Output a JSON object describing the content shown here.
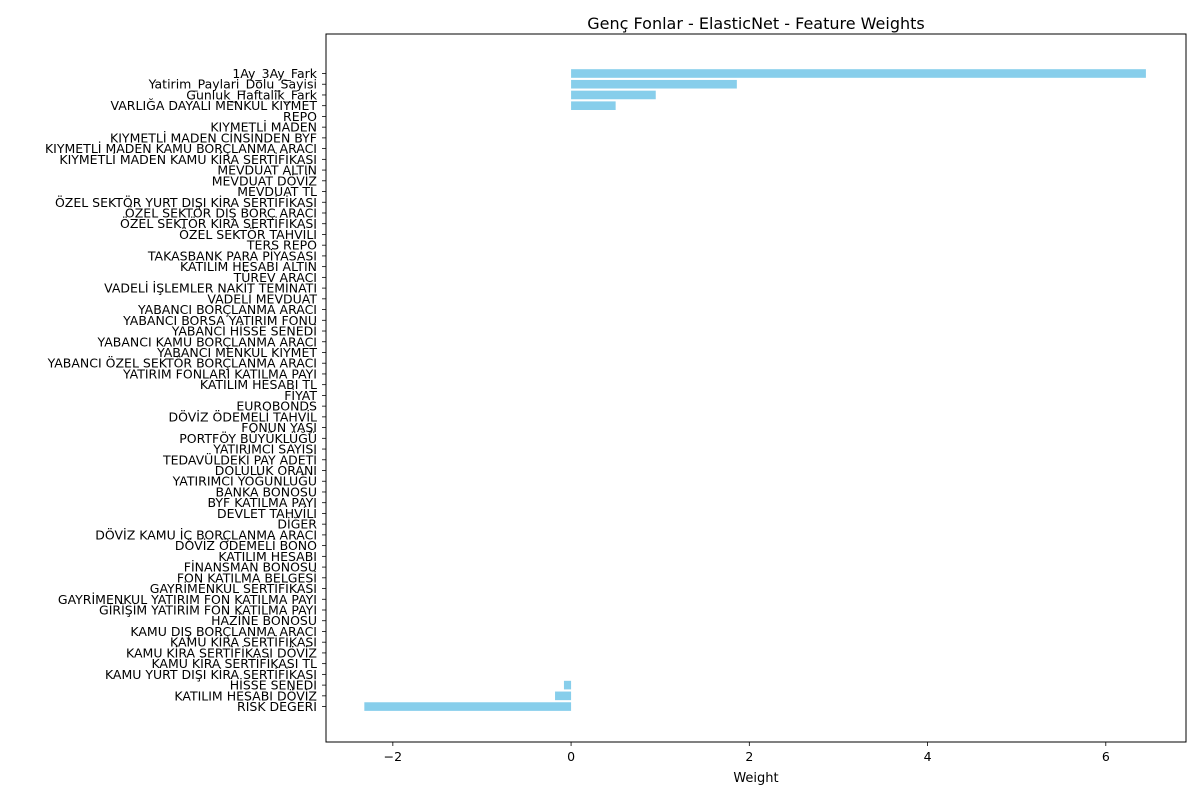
{
  "chart_data": {
    "type": "bar",
    "orientation": "horizontal",
    "title": "Genç Fonlar - ElasticNet - Feature Weights",
    "xlabel": "Weight",
    "ylabel": "",
    "xlim": [
      -2.75,
      6.9
    ],
    "x_ticks": [
      -2,
      0,
      2,
      4,
      6
    ],
    "x_tick_labels": [
      "−2",
      "0",
      "2",
      "4",
      "6"
    ],
    "grid": false,
    "bar_color": "#87CEEB",
    "categories": [
      "1Ay_3Ay_Fark",
      "Yatirim_Paylari_Dolu_Sayisi",
      "Gunluk_Haftalik_Fark",
      "VARLIĞA DAYALI MENKUL KIYMET",
      "REPO",
      "KIYMETLİ MADEN",
      "KIYMETLİ MADEN CİNSİNDEN BYF",
      "KIYMETLİ MADEN KAMU BORÇLANMA ARACI",
      "KIYMETLİ MADEN KAMU KİRA SERTİFİKASI",
      "MEVDUAT ALTIN",
      "MEVDUAT DÖVİZ",
      "MEVDUAT TL",
      "ÖZEL SEKTÖR YURT DIŞI KİRA SERTİFİKASI",
      "ÖZEL SEKTÖR DIŞ BORÇ ARACI",
      "ÖZEL SEKTÖR KİRA SERTİFİKASI",
      "ÖZEL SEKTÖR TAHVİLİ",
      "TERS REPO",
      "TAKASBANK PARA PİYASASI",
      "KATILIM HESABI ALTIN",
      "TÜREV ARACI",
      "VADELİ İŞLEMLER NAKİT TEMİNATI",
      "VADELİ MEVDUAT",
      "YABANCI BORÇLANMA ARACI",
      "YABANCI BORSA YATIRIM FONU",
      "YABANCI HİSSE SENEDİ",
      "YABANCI KAMU BORÇLANMA ARACI",
      "YABANCI MENKUL KIYMET",
      "YABANCI ÖZEL SEKTÖR BORÇLANMA ARACI",
      "YATIRIM FONLARI KATILMA PAYI",
      "KATILIM HESABI TL",
      "FİYAT",
      "EUROBONDS",
      "DÖVİZ ÖDEMELİ TAHVİL",
      "FONUN YAŞI",
      "PORTFÖY BÜYÜKLÜĞÜ",
      "YATIRIMCI SAYISI",
      "TEDAVÜLDEKİ PAY ADETİ",
      "DOLULUK ORANI",
      "YATIRIMCI YOĞUNLUĞU",
      "BANKA BONOSU",
      "BYF KATILMA PAYI",
      "DEVLET TAHVİLİ",
      "DİĞER",
      "DÖVİZ KAMU İÇ BORÇLANMA ARACI",
      "DÖVİZ ÖDEMELİ BONO",
      "KATILIM HESABI",
      "FİNANSMAN BONOSU",
      "FON KATILMA BELGESİ",
      "GAYRİMENKUL SERTİFİKASI",
      "GAYRİMENKUL YATIRIM FON KATILMA PAYI",
      "GİRİŞİM YATIRIM FON KATILMA PAYI",
      "HAZİNE BONOSU",
      "KAMU DIŞ BORÇLANMA ARACI",
      "KAMU KİRA SERTİFİKASI",
      "KAMU KİRA SERTİFİKASI DÖVİZ",
      "KAMU KİRA SERTİFİKASI TL",
      "KAMU YURT DIŞI KİRA SERTİFİKASI",
      "HİSSE SENEDİ",
      "KATILIM HESABI DÖVİZ",
      "RİSK DEĞERİ"
    ],
    "values": [
      6.45,
      1.86,
      0.95,
      0.5,
      0,
      0,
      0,
      0,
      0,
      0,
      0,
      0,
      0,
      0,
      0,
      0,
      0,
      0,
      0,
      0,
      0,
      0,
      0,
      0,
      0,
      0,
      0,
      0,
      0,
      0,
      0,
      0,
      0,
      0,
      0,
      0,
      0,
      0,
      0,
      0,
      0,
      0,
      0,
      0,
      0,
      0,
      0,
      0,
      0,
      0,
      0,
      0,
      0,
      0,
      0,
      0,
      0,
      -0.08,
      -0.18,
      -2.32
    ]
  }
}
